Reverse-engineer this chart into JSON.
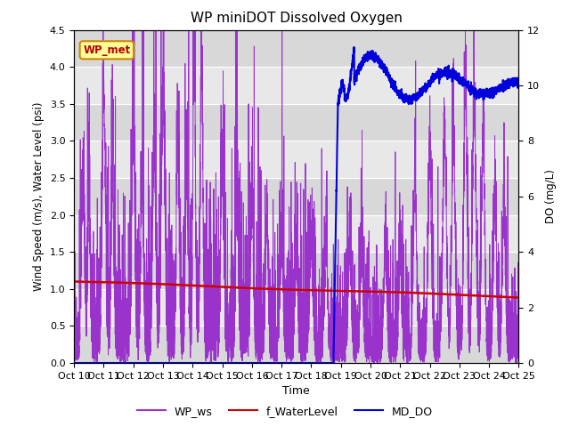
{
  "title": "WP miniDOT Dissolved Oxygen",
  "xlabel": "Time",
  "ylabel_left": "Wind Speed (m/s), Water Level (psi)",
  "ylabel_right": "DO (mg/L)",
  "ylim_left": [
    0,
    4.5
  ],
  "ylim_right": [
    0,
    12
  ],
  "yticks_left": [
    0.0,
    0.5,
    1.0,
    1.5,
    2.0,
    2.5,
    3.0,
    3.5,
    4.0,
    4.5
  ],
  "yticks_right": [
    0,
    2,
    4,
    6,
    8,
    10,
    12
  ],
  "xtick_labels": [
    "Oct 10",
    "Oct 11",
    "Oct 12",
    "Oct 13",
    "Oct 14",
    "Oct 15",
    "Oct 16",
    "Oct 17",
    "Oct 18",
    "Oct 19",
    "Oct 20",
    "Oct 21",
    "Oct 22",
    "Oct 23",
    "Oct 24",
    "Oct 25"
  ],
  "xtick_positions": [
    0,
    1,
    2,
    3,
    4,
    5,
    6,
    7,
    8,
    9,
    10,
    11,
    12,
    13,
    14,
    15
  ],
  "inner_bg_color": "#e8e8e8",
  "band_color_dark": "#d8d8d8",
  "band_color_light": "#e8e8e8",
  "ws_color": "#9933cc",
  "wl_color": "#cc0000",
  "do_color": "#0000dd",
  "legend_label_ws": "WP_ws",
  "legend_label_wl": "f_WaterLevel",
  "legend_label_do": "MD_DO",
  "annotation_text": "WP_met",
  "annotation_color": "#bb0000",
  "annotation_bg": "#ffff99",
  "annotation_border": "#cc8800",
  "figsize": [
    6.4,
    4.8
  ],
  "dpi": 100
}
